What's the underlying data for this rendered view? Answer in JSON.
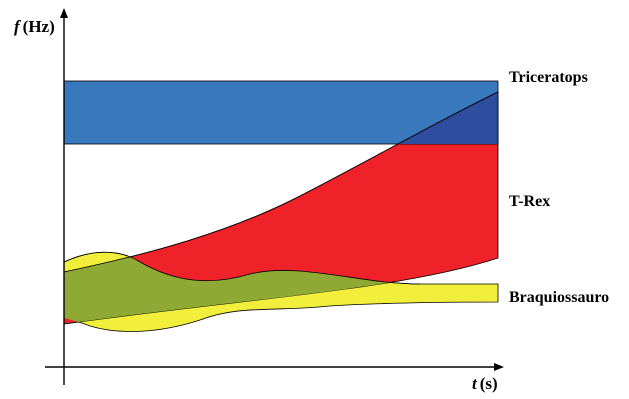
{
  "axes": {
    "y_symbol": "f",
    "y_unit": "(Hz)",
    "x_symbol": "t",
    "x_unit": "(s)"
  },
  "regions": [
    {
      "key": "braquiossauro",
      "label": "Braquiossauro",
      "color": "#f2ee3c"
    },
    {
      "key": "trex",
      "label": "T-Rex",
      "color": "#ee2228"
    },
    {
      "key": "triceratops",
      "label": "Triceratops",
      "color": "#3a78be"
    }
  ],
  "overlap_colors": {
    "trex_braquiossauro": "#8faa34",
    "triceratops_trex": "#2f4d9f"
  }
}
